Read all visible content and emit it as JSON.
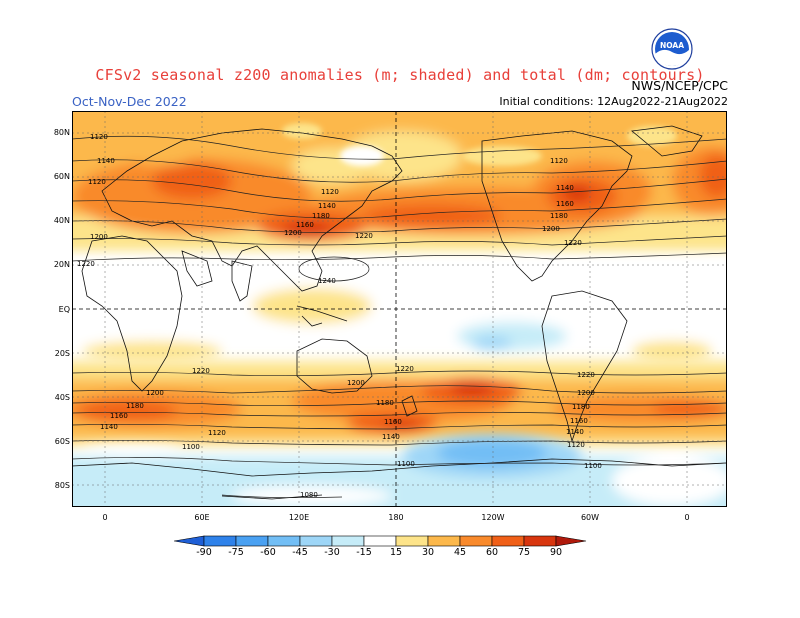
{
  "title": "CFSv2 seasonal z200 anomalies (m; shaded) and total (dm; contours)",
  "season": "Oct-Nov-Dec 2022",
  "agency": "NWS/NCEP/CPC",
  "initial_conditions": "Initial conditions: 12Aug2022-21Aug2022",
  "logo_text": "NOAA",
  "lat_labels": [
    "80N",
    "60N",
    "40N",
    "20N",
    "EQ",
    "20S",
    "40S",
    "60S",
    "80S"
  ],
  "lon_labels": [
    "0",
    "60E",
    "120E",
    "180",
    "120W",
    "60W",
    "0"
  ],
  "colorbar": {
    "ticks": [
      "-90",
      "-75",
      "-60",
      "-45",
      "-30",
      "-15",
      "15",
      "30",
      "45",
      "60",
      "75",
      "90"
    ],
    "colors": [
      "#1f5fd6",
      "#2f82ea",
      "#4aa1f2",
      "#72bef5",
      "#9ed6f7",
      "#c6ecf8",
      "#ffffff",
      "#fde48a",
      "#fcb84b",
      "#f98a2c",
      "#f06018",
      "#d8360f",
      "#b01a0c"
    ]
  },
  "contour_labels": [
    "1120",
    "1140",
    "1160",
    "1180",
    "1200",
    "1220",
    "1240",
    "1100",
    "1080"
  ],
  "chart_data": {
    "type": "heatmap",
    "title": "CFSv2 seasonal z200 anomalies (m; shaded) and total (dm; contours)",
    "variable": "z200",
    "period": "Oct-Nov-Dec 2022",
    "initial_conditions": "12Aug2022-21Aug2022",
    "shading_units": "m",
    "contour_units": "dm",
    "lat_range": [
      -90,
      90
    ],
    "lon_range": [
      -10,
      360
    ],
    "color_levels": [
      -90,
      -75,
      -60,
      -45,
      -30,
      -15,
      15,
      30,
      45,
      60,
      75,
      90
    ],
    "contour_levels": [
      1080,
      1100,
      1120,
      1140,
      1160,
      1180,
      1200,
      1220,
      1240
    ],
    "anomaly_features": [
      {
        "lat": 42,
        "lon": 130,
        "value": 60
      },
      {
        "lat": 40,
        "lon": 200,
        "value": 60
      },
      {
        "lat": 50,
        "lon": 290,
        "value": 60
      },
      {
        "lat": 45,
        "lon": 20,
        "value": 60
      },
      {
        "lat": -38,
        "lon": 220,
        "value": 75
      },
      {
        "lat": -47,
        "lon": 180,
        "value": 60
      },
      {
        "lat": -47,
        "lon": 10,
        "value": 60
      },
      {
        "lat": -47,
        "lon": 340,
        "value": 60
      },
      {
        "lat": -62,
        "lon": 230,
        "value": -45
      },
      {
        "lat": -15,
        "lon": 220,
        "value": -30
      },
      {
        "lat": -72,
        "lon": 60,
        "value": -15
      }
    ]
  }
}
